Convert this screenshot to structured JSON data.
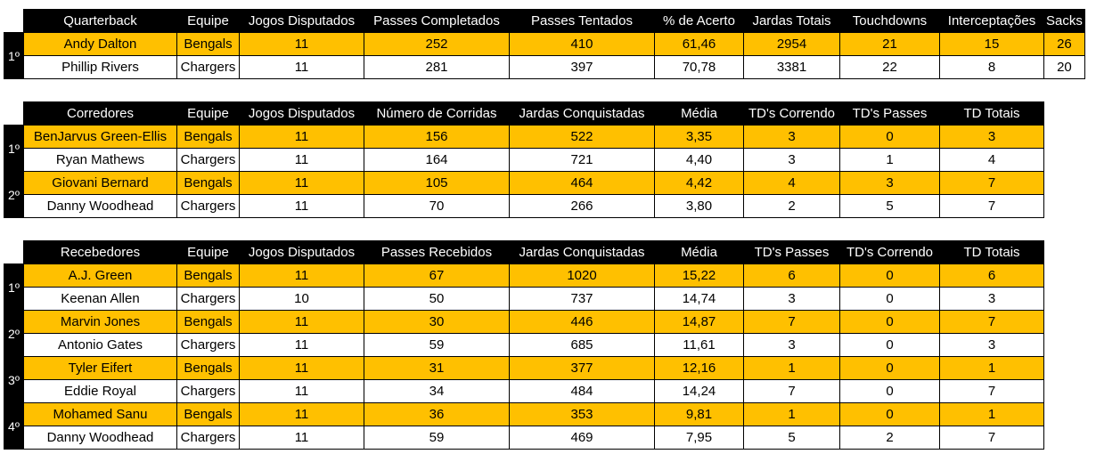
{
  "qb": {
    "headers": [
      "Quarterback",
      "Equipe",
      "Jogos Disputados",
      "Passes Completados",
      "Passes Tentados",
      "% de Acerto",
      "Jardas Totais",
      "Touchdowns",
      "Interceptações",
      "Sacks"
    ],
    "rows": [
      {
        "rank": "1º",
        "cells": [
          "Andy Dalton",
          "Bengals",
          "11",
          "252",
          "410",
          "61,46",
          "2954",
          "21",
          "15",
          "26"
        ]
      },
      {
        "rank": "",
        "cells": [
          "Phillip Rivers",
          "Chargers",
          "11",
          "281",
          "397",
          "70,78",
          "3381",
          "22",
          "8",
          "20"
        ]
      }
    ]
  },
  "rb": {
    "headers": [
      "Corredores",
      "Equipe",
      "Jogos Disputados",
      "Número de Corridas",
      "Jardas Conquistadas",
      "Média",
      "TD's Correndo",
      "TD's Passes",
      "TD Totais"
    ],
    "rows": [
      {
        "rank": "1º",
        "cells": [
          "BenJarvus Green-Ellis",
          "Bengals",
          "11",
          "156",
          "522",
          "3,35",
          "3",
          "0",
          "3"
        ]
      },
      {
        "rank": "",
        "cells": [
          "Ryan Mathews",
          "Chargers",
          "11",
          "164",
          "721",
          "4,40",
          "3",
          "1",
          "4"
        ]
      },
      {
        "rank": "2º",
        "cells": [
          "Giovani Bernard",
          "Bengals",
          "11",
          "105",
          "464",
          "4,42",
          "4",
          "3",
          "7"
        ]
      },
      {
        "rank": "",
        "cells": [
          "Danny Woodhead",
          "Chargers",
          "11",
          "70",
          "266",
          "3,80",
          "2",
          "5",
          "7"
        ]
      }
    ]
  },
  "wr": {
    "headers": [
      "Recebedores",
      "Equipe",
      "Jogos Disputados",
      "Passes Recebidos",
      "Jardas Conquistadas",
      "Média",
      "TD's Passes",
      "TD's Correndo",
      "TD Totais"
    ],
    "rows": [
      {
        "rank": "1º",
        "cells": [
          "A.J. Green",
          "Bengals",
          "11",
          "67",
          "1020",
          "15,22",
          "6",
          "0",
          "6"
        ]
      },
      {
        "rank": "",
        "cells": [
          "Keenan Allen",
          "Chargers",
          "10",
          "50",
          "737",
          "14,74",
          "3",
          "0",
          "3"
        ]
      },
      {
        "rank": "2º",
        "cells": [
          "Marvin Jones",
          "Bengals",
          "11",
          "30",
          "446",
          "14,87",
          "7",
          "0",
          "7"
        ]
      },
      {
        "rank": "",
        "cells": [
          "Antonio Gates",
          "Chargers",
          "11",
          "59",
          "685",
          "11,61",
          "3",
          "0",
          "3"
        ]
      },
      {
        "rank": "3º",
        "cells": [
          "Tyler Eifert",
          "Bengals",
          "11",
          "31",
          "377",
          "12,16",
          "1",
          "0",
          "1"
        ]
      },
      {
        "rank": "",
        "cells": [
          "Eddie Royal",
          "Chargers",
          "11",
          "34",
          "484",
          "14,24",
          "7",
          "0",
          "7"
        ]
      },
      {
        "rank": "4º",
        "cells": [
          "Mohamed Sanu",
          "Bengals",
          "11",
          "36",
          "353",
          "9,81",
          "1",
          "0",
          "1"
        ]
      },
      {
        "rank": "",
        "cells": [
          "Danny Woodhead",
          "Chargers",
          "11",
          "59",
          "469",
          "7,95",
          "5",
          "2",
          "7"
        ]
      }
    ]
  },
  "colors": {
    "highlight": "#FFC000",
    "header_bg": "#000000",
    "header_fg": "#ffffff"
  }
}
